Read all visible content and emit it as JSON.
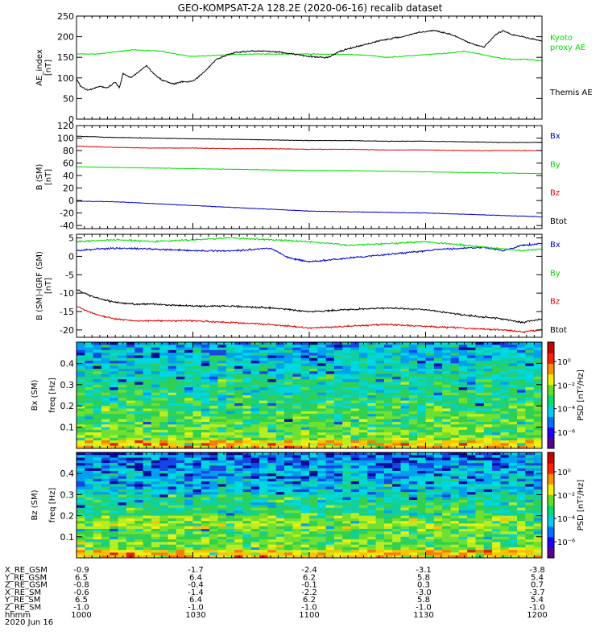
{
  "title": "GEO-KOMPSAT-2A 128.2E (2020-06-16) recalib dataset",
  "colors": {
    "black": "#000000",
    "green": "#00dd00",
    "red": "#dd0000",
    "blue": "#0000cc"
  },
  "chart_data": [
    {
      "type": "line",
      "panel": "ae",
      "ylabel": [
        "AE_index",
        "[nT]"
      ],
      "ylim": [
        0,
        250
      ],
      "yticks": [
        0,
        50,
        100,
        150,
        200,
        250
      ],
      "xlim_minutes": [
        0,
        120
      ],
      "series": [
        {
          "name": "Kyoto proxy AE",
          "label_lines": [
            "Kyoto",
            "proxy AE"
          ],
          "color": "green",
          "t": [
            0,
            5,
            10,
            14,
            17,
            22,
            26,
            30,
            36,
            44,
            50,
            60,
            70,
            75,
            80,
            88,
            96,
            100,
            104,
            108,
            112,
            116,
            120
          ],
          "v": [
            158,
            158,
            163,
            168,
            167,
            165,
            157,
            152,
            155,
            158,
            158,
            158,
            157,
            155,
            150,
            155,
            160,
            165,
            158,
            150,
            145,
            145,
            142
          ]
        },
        {
          "name": "Themis AE",
          "label_lines": [
            "Themis AE"
          ],
          "color": "black",
          "t": [
            0,
            1,
            3,
            6,
            8,
            10,
            11,
            12,
            14,
            16,
            18,
            20,
            22,
            25,
            27,
            30,
            33,
            36,
            40,
            44,
            50,
            56,
            62,
            65,
            68,
            72,
            78,
            84,
            88,
            92,
            95,
            98,
            100,
            103,
            105,
            108,
            110,
            112,
            115,
            117,
            120
          ],
          "v": [
            100,
            80,
            70,
            80,
            75,
            90,
            75,
            110,
            100,
            115,
            130,
            110,
            95,
            85,
            90,
            92,
            115,
            145,
            160,
            165,
            165,
            158,
            150,
            150,
            165,
            175,
            190,
            200,
            210,
            215,
            210,
            200,
            190,
            180,
            175,
            205,
            215,
            205,
            200,
            195,
            190
          ]
        }
      ]
    },
    {
      "type": "line",
      "panel": "b_sm",
      "ylabel": [
        "B (SM)",
        "[nT]"
      ],
      "ylim": [
        -45,
        120
      ],
      "yticks": [
        -40,
        -20,
        0,
        20,
        40,
        60,
        80,
        100,
        120
      ],
      "xlim_minutes": [
        0,
        120
      ],
      "series": [
        {
          "name": "Bx",
          "color": "blue",
          "t": [
            0,
            10,
            20,
            30,
            40,
            50,
            60,
            70,
            80,
            90,
            100,
            110,
            120
          ],
          "v": [
            -1,
            -2,
            -5,
            -8,
            -11,
            -14,
            -17,
            -18,
            -19,
            -20,
            -22,
            -24,
            -26
          ]
        },
        {
          "name": "By",
          "color": "green",
          "t": [
            0,
            10,
            20,
            30,
            40,
            50,
            60,
            70,
            80,
            90,
            100,
            110,
            120
          ],
          "v": [
            54,
            53,
            52,
            51,
            50,
            49,
            48,
            48,
            47,
            46,
            45,
            44,
            43
          ]
        },
        {
          "name": "Bz",
          "color": "red",
          "t": [
            0,
            10,
            20,
            30,
            40,
            50,
            60,
            70,
            80,
            90,
            100,
            110,
            120
          ],
          "v": [
            87,
            85,
            84,
            84,
            83,
            83,
            82,
            82,
            81,
            81,
            80,
            80,
            80
          ]
        },
        {
          "name": "Btot",
          "color": "black",
          "t": [
            0,
            10,
            20,
            30,
            40,
            50,
            60,
            70,
            80,
            90,
            100,
            110,
            120
          ],
          "v": [
            103,
            101,
            100,
            99,
            98,
            97,
            96,
            96,
            95,
            95,
            94,
            93,
            93
          ]
        }
      ]
    },
    {
      "type": "line",
      "panel": "b_sm_igrf",
      "ylabel": [
        "B (SM)-IGRF (SM)",
        "[nT]"
      ],
      "ylim": [
        -22,
        6
      ],
      "yticks": [
        -20,
        -15,
        -10,
        -5,
        0,
        5
      ],
      "xlim_minutes": [
        0,
        120
      ],
      "series": [
        {
          "name": "Bx",
          "color": "blue",
          "t": [
            0,
            5,
            10,
            20,
            30,
            40,
            50,
            55,
            60,
            65,
            70,
            75,
            80,
            85,
            90,
            95,
            100,
            105,
            110,
            115,
            120
          ],
          "v": [
            1.5,
            2,
            2.2,
            2,
            1.5,
            1.5,
            2.2,
            -0.5,
            -1.5,
            -1,
            -0.5,
            0,
            0.5,
            1,
            1.5,
            2,
            2.2,
            2.5,
            1.5,
            3,
            3.5
          ]
        },
        {
          "name": "By",
          "color": "green",
          "t": [
            0,
            10,
            20,
            30,
            40,
            50,
            60,
            70,
            80,
            90,
            100,
            110,
            115,
            120
          ],
          "v": [
            4,
            4.5,
            4,
            4.5,
            5,
            4.5,
            4,
            3,
            3.5,
            4,
            3,
            2,
            1.5,
            2
          ]
        },
        {
          "name": "Bz",
          "color": "red",
          "t": [
            0,
            3,
            6,
            10,
            15,
            20,
            30,
            40,
            50,
            60,
            70,
            80,
            90,
            100,
            110,
            115,
            120
          ],
          "v": [
            -13.5,
            -15,
            -16,
            -17,
            -17.5,
            -17.5,
            -17.5,
            -18,
            -18.5,
            -19.5,
            -19,
            -18.5,
            -19,
            -19.5,
            -20,
            -20.5,
            -20
          ]
        },
        {
          "name": "Btot",
          "color": "black",
          "t": [
            0,
            3,
            6,
            10,
            15,
            20,
            30,
            40,
            50,
            60,
            70,
            80,
            90,
            100,
            110,
            115,
            120
          ],
          "v": [
            -9,
            -10.5,
            -11.5,
            -12.5,
            -13,
            -13,
            -13.5,
            -13.5,
            -14,
            -15,
            -14.5,
            -14,
            -14.5,
            -16,
            -17,
            -18,
            -17
          ]
        }
      ]
    },
    {
      "type": "heatmap",
      "panel": "bx_spec",
      "ylabel": [
        "Bx (SM)",
        "freq [Hz]"
      ],
      "ylim": [
        0,
        0.5
      ],
      "yticks": [
        0.1,
        0.2,
        0.3,
        0.4
      ],
      "colorbar": {
        "label": "PSD [nT²/Hz]",
        "ticks": [
          "10⁰",
          "10⁻²",
          "10⁻⁴",
          "10⁻⁶"
        ],
        "scale": "log"
      }
    },
    {
      "type": "heatmap",
      "panel": "bz_spec",
      "ylabel": [
        "Bz (SM)",
        "freq [Hz]"
      ],
      "ylim": [
        0,
        0.5
      ],
      "yticks": [
        0.1,
        0.2,
        0.3,
        0.4
      ],
      "colorbar": {
        "label": "PSD [nT²/Hz]",
        "ticks": [
          "10⁰",
          "10⁻²",
          "10⁻⁴",
          "10⁻⁶"
        ],
        "scale": "log"
      }
    }
  ],
  "ephemeris": {
    "rows": [
      {
        "label": "X_RE_GSM",
        "values": [
          "-0.9",
          "-1.7",
          "-2.4",
          "-3.1",
          "-3.8"
        ]
      },
      {
        "label": "Y_RE_GSM",
        "values": [
          "6.5",
          "6.4",
          "6.2",
          "5.8",
          "5.4"
        ]
      },
      {
        "label": "Z_RE_GSM",
        "values": [
          "-0.8",
          "-0.4",
          "-0.1",
          "0.3",
          "0.7"
        ]
      },
      {
        "label": "X_RE_SM",
        "values": [
          "-0.6",
          "-1.4",
          "-2.2",
          "-3.0",
          "-3.7"
        ]
      },
      {
        "label": "Y_RE_SM",
        "values": [
          "6.5",
          "6.4",
          "6.2",
          "5.8",
          "5.4"
        ]
      },
      {
        "label": "Z_RE_SM",
        "values": [
          "-1.0",
          "-1.0",
          "-1.0",
          "-1.0",
          "-1.0"
        ]
      },
      {
        "label": "hhmm",
        "values": [
          "1000",
          "1030",
          "1100",
          "1130",
          "1200"
        ]
      }
    ],
    "date": "2020 Jun 16"
  }
}
